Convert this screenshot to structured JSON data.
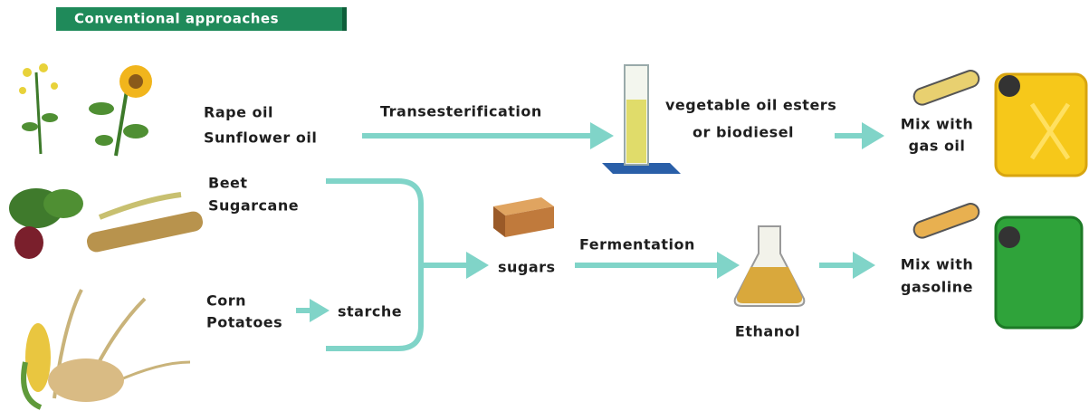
{
  "header": {
    "title": "Conventional approaches"
  },
  "oil_path": {
    "sources": [
      "Rape oil",
      "Sunflower oil"
    ],
    "process": "Transesterification",
    "product": [
      "vegetable oil esters",
      "or biodiesel"
    ],
    "use": [
      "Mix with",
      "gas oil"
    ]
  },
  "sugar_path": {
    "sugar_sources": [
      "Beet",
      "Sugarcane"
    ],
    "starch_sources": [
      "Corn",
      "Potatoes"
    ],
    "starch": "starche",
    "sugars": "sugars",
    "process": "Fermentation",
    "product": "Ethanol",
    "use": [
      "Mix with",
      "gasoline"
    ]
  }
}
